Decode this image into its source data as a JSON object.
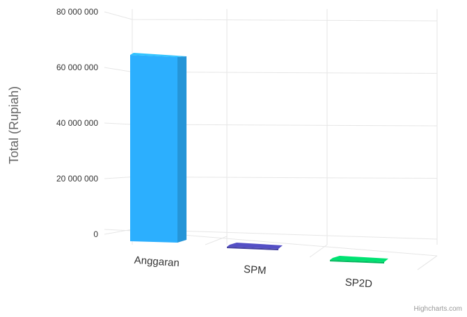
{
  "chart_data": {
    "type": "bar",
    "categories": [
      "Anggaran",
      "SPM",
      "SP2D"
    ],
    "series": [
      {
        "values": [
          67500000,
          0,
          0
        ],
        "colors": [
          "#2caffe",
          "#544fc5",
          "#00e272"
        ]
      }
    ],
    "ylabel": "Total (Rupiah)",
    "ylim": [
      0,
      80000000
    ],
    "yticks": [
      "0",
      "20 000 000",
      "40 000 000",
      "60 000 000",
      "80 000 000"
    ],
    "grid": true,
    "legend": "none",
    "credits": "Highcharts.com"
  }
}
